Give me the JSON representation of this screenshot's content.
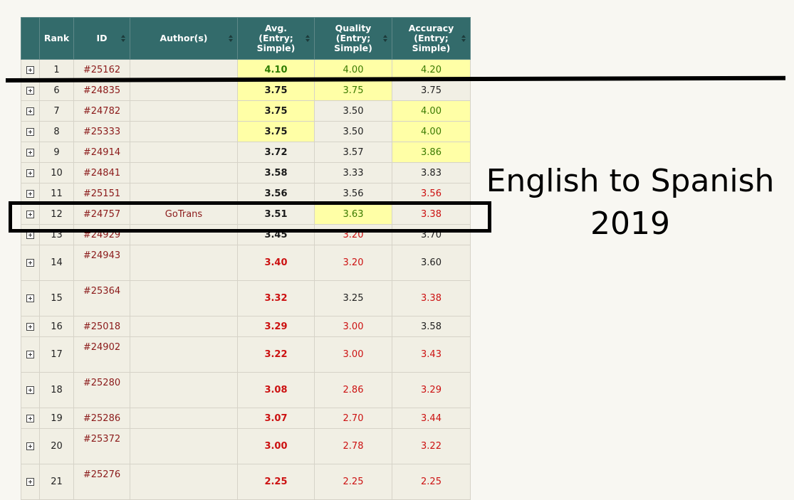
{
  "table": {
    "headers": {
      "rank": "Rank",
      "id": "ID",
      "authors": "Author(s)",
      "avg_line1": "Avg.",
      "avg_line2": "(Entry;",
      "avg_line3": "Simple)",
      "quality_line1": "Quality",
      "quality_line2": "(Entry;",
      "quality_line3": "Simple)",
      "accuracy_line1": "Accuracy",
      "accuracy_line2": "(Entry;",
      "accuracy_line3": "Simple)"
    },
    "rows": [
      {
        "rank": "1",
        "id": "#25162",
        "author": "",
        "avg": "4.10",
        "quality": "4.00",
        "accuracy": "4.20"
      },
      {
        "rank": "6",
        "id": "#24835",
        "author": "",
        "avg": "3.75",
        "quality": "3.75",
        "accuracy": "3.75"
      },
      {
        "rank": "7",
        "id": "#24782",
        "author": "",
        "avg": "3.75",
        "quality": "3.50",
        "accuracy": "4.00"
      },
      {
        "rank": "8",
        "id": "#25333",
        "author": "",
        "avg": "3.75",
        "quality": "3.50",
        "accuracy": "4.00"
      },
      {
        "rank": "9",
        "id": "#24914",
        "author": "",
        "avg": "3.72",
        "quality": "3.57",
        "accuracy": "3.86"
      },
      {
        "rank": "10",
        "id": "#24841",
        "author": "",
        "avg": "3.58",
        "quality": "3.33",
        "accuracy": "3.83"
      },
      {
        "rank": "11",
        "id": "#25151",
        "author": "",
        "avg": "3.56",
        "quality": "3.56",
        "accuracy": "3.56"
      },
      {
        "rank": "12",
        "id": "#24757",
        "author": "GoTrans",
        "avg": "3.51",
        "quality": "3.63",
        "accuracy": "3.38"
      },
      {
        "rank": "13",
        "id": "#24929",
        "author": "",
        "avg": "3.45",
        "quality": "3.20",
        "accuracy": "3.70"
      },
      {
        "rank": "14",
        "id": "#24943",
        "author": "",
        "avg": "3.40",
        "quality": "3.20",
        "accuracy": "3.60"
      },
      {
        "rank": "15",
        "id": "#25364",
        "author": "",
        "avg": "3.32",
        "quality": "3.25",
        "accuracy": "3.38"
      },
      {
        "rank": "16",
        "id": "#25018",
        "author": "",
        "avg": "3.29",
        "quality": "3.00",
        "accuracy": "3.58"
      },
      {
        "rank": "17",
        "id": "#24902",
        "author": "",
        "avg": "3.22",
        "quality": "3.00",
        "accuracy": "3.43"
      },
      {
        "rank": "18",
        "id": "#25280",
        "author": "",
        "avg": "3.08",
        "quality": "2.86",
        "accuracy": "3.29"
      },
      {
        "rank": "19",
        "id": "#25286",
        "author": "",
        "avg": "3.07",
        "quality": "2.70",
        "accuracy": "3.44"
      },
      {
        "rank": "20",
        "id": "#25372",
        "author": "",
        "avg": "3.00",
        "quality": "2.78",
        "accuracy": "3.22"
      },
      {
        "rank": "21",
        "id": "#25276",
        "author": "",
        "avg": "2.25",
        "quality": "2.25",
        "accuracy": "2.25"
      }
    ]
  },
  "caption": {
    "line1": "English to Spanish",
    "line2": "2019"
  },
  "colors": {
    "header_bg": "#336b6b",
    "highlight_cell": "#ffffa6",
    "good_text": "#3a7a00",
    "bad_text": "#cc1111",
    "id_link": "#8b1a1a"
  }
}
